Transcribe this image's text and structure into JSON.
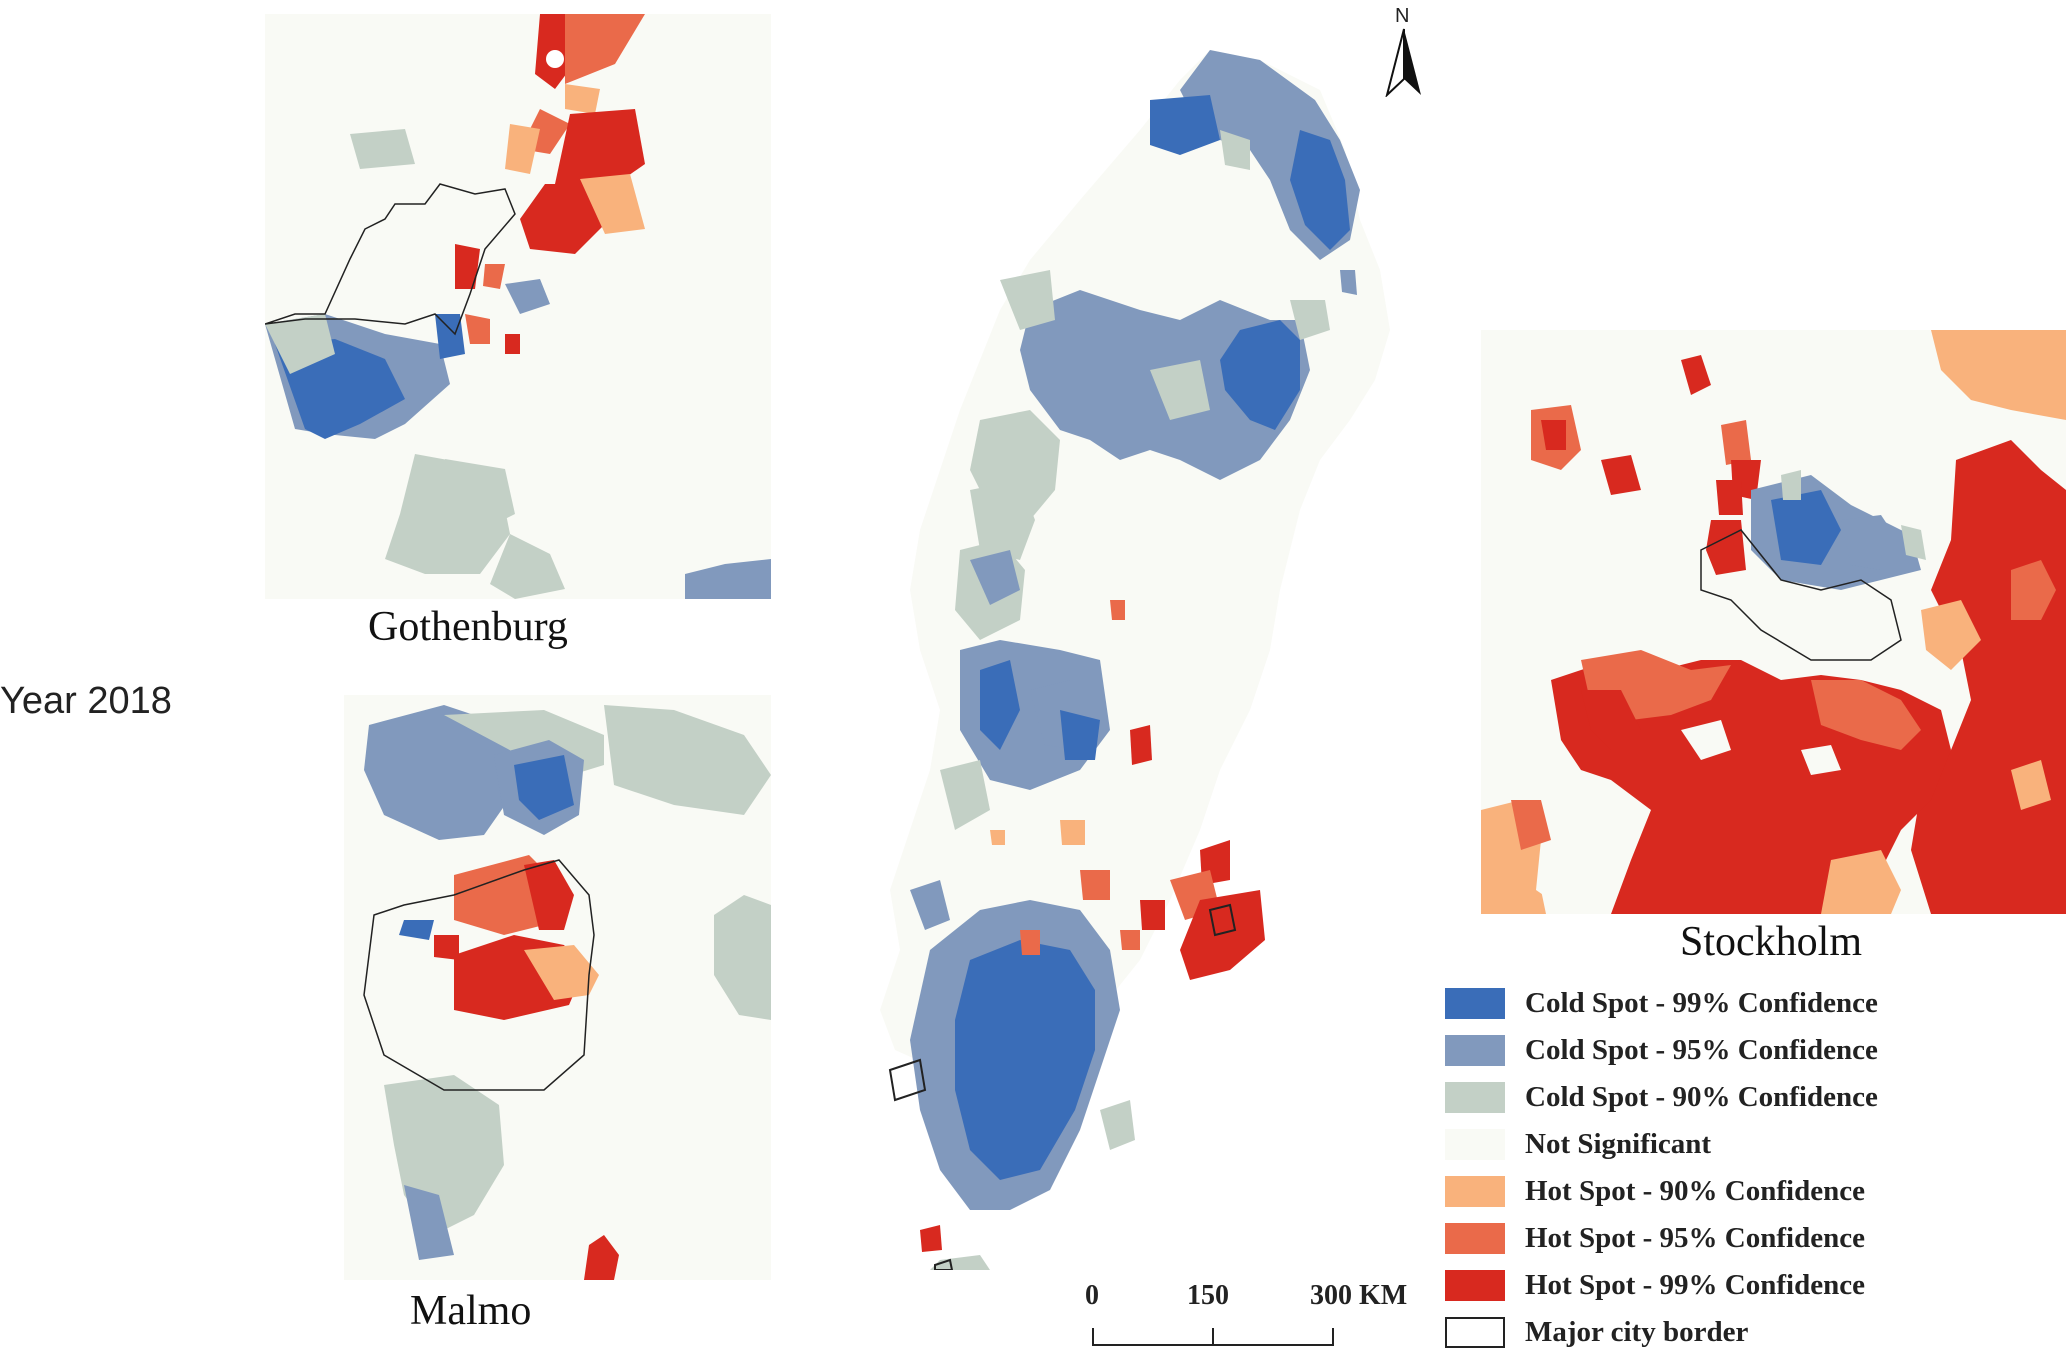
{
  "figure_label": "Year 2018",
  "north_arrow_label": "N",
  "insets": {
    "gothenburg": {
      "label": "Gothenburg"
    },
    "malmo": {
      "label": "Malmo"
    },
    "stockholm": {
      "label": "Stockholm"
    }
  },
  "scale_bar": {
    "tick_0": "0",
    "tick_1": "150",
    "tick_2": "300 KM"
  },
  "colors": {
    "cold99": "#3a6db8",
    "cold95": "#8199bd",
    "cold90": "#c3d0c6",
    "not_significant": "#f9faf5",
    "hot90": "#f9b27c",
    "hot95": "#ea6a4a",
    "hot99": "#d8291f",
    "city_border": "#222222"
  },
  "legend": {
    "items": [
      {
        "label": "Cold Spot - 99% Confidence",
        "color": "#3a6db8"
      },
      {
        "label": "Cold Spot - 95% Confidence",
        "color": "#8199bd"
      },
      {
        "label": "Cold Spot - 90% Confidence",
        "color": "#c3d0c6"
      },
      {
        "label": "Not Significant",
        "color": "#f9faf5"
      },
      {
        "label": "Hot Spot - 90% Confidence",
        "color": "#f9b27c"
      },
      {
        "label": "Hot Spot - 95% Confidence",
        "color": "#ea6a4a"
      },
      {
        "label": "Hot Spot - 99% Confidence",
        "color": "#d8291f"
      },
      {
        "label": "Major city border",
        "color": "#ffffff"
      }
    ]
  }
}
